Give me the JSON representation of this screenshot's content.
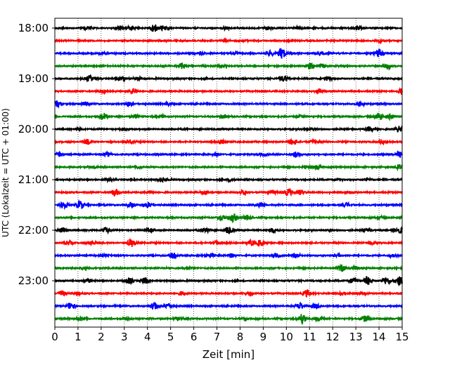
{
  "chart_data": {
    "type": "line",
    "xlabel": "Zeit  [min]",
    "ylabel": "UTC (Lokalzeit = UTC + 01:00)",
    "xlim": [
      0,
      15
    ],
    "x_ticks": [
      "0",
      "1",
      "2",
      "3",
      "4",
      "5",
      "6",
      "7",
      "8",
      "9",
      "10",
      "11",
      "12",
      "13",
      "14",
      "15"
    ],
    "y_tick_labels": [
      "18:00",
      "19:00",
      "20:00",
      "21:00",
      "22:00",
      "23:00"
    ],
    "y_tick_rows": [
      0,
      4,
      8,
      12,
      16,
      20
    ],
    "grid": "vertical dotted at each minute",
    "trace_interval_min": 15,
    "trace_colors": [
      "#000000",
      "#ff0000",
      "#0000ff",
      "#008000"
    ],
    "traces": [
      {
        "time": "18:00",
        "events": [
          [
            1.4,
            0.25
          ],
          [
            2.8,
            0.3
          ],
          [
            3.3,
            0.25
          ],
          [
            4.3,
            0.55
          ],
          [
            4.7,
            0.35
          ],
          [
            7.4,
            0.2
          ],
          [
            9.2,
            0.25
          ],
          [
            10.5,
            0.2
          ],
          [
            13.1,
            0.35
          ]
        ]
      },
      {
        "time": "18:15",
        "events": [
          [
            7.3,
            0.2
          ],
          [
            8.1,
            0.15
          ],
          [
            10.2,
            0.15
          ],
          [
            14.1,
            0.2
          ]
        ]
      },
      {
        "time": "18:30",
        "events": [
          [
            2.1,
            0.15
          ],
          [
            6.3,
            0.2
          ],
          [
            7.8,
            0.2
          ],
          [
            9.3,
            0.35
          ],
          [
            9.8,
            0.8
          ],
          [
            11.5,
            0.25
          ],
          [
            14.0,
            0.75
          ]
        ]
      },
      {
        "time": "18:45",
        "events": [
          [
            5.5,
            0.45
          ],
          [
            7.2,
            0.2
          ],
          [
            11.0,
            0.45
          ],
          [
            11.5,
            0.3
          ],
          [
            14.4,
            0.4
          ]
        ]
      },
      {
        "time": "19:00",
        "events": [
          [
            1.5,
            0.45
          ],
          [
            2.9,
            0.35
          ],
          [
            3.6,
            0.25
          ],
          [
            9.9,
            0.45
          ],
          [
            11.8,
            0.3
          ]
        ]
      },
      {
        "time": "19:15",
        "events": [
          [
            2.1,
            0.2
          ],
          [
            3.4,
            0.4
          ],
          [
            11.4,
            0.35
          ],
          [
            15.0,
            0.5
          ]
        ]
      },
      {
        "time": "19:30",
        "events": [
          [
            0.1,
            0.45
          ],
          [
            1.3,
            0.25
          ],
          [
            3.2,
            0.35
          ],
          [
            4.9,
            0.2
          ],
          [
            13.2,
            0.35
          ]
        ]
      },
      {
        "time": "19:45",
        "events": [
          [
            2.1,
            0.55
          ],
          [
            3.5,
            0.25
          ],
          [
            4.6,
            0.2
          ],
          [
            7.3,
            0.25
          ],
          [
            10.6,
            0.2
          ],
          [
            14.0,
            0.6
          ],
          [
            14.5,
            0.4
          ]
        ]
      },
      {
        "time": "20:00",
        "events": [
          [
            1.0,
            0.25
          ],
          [
            3.0,
            0.2
          ],
          [
            10.9,
            0.2
          ],
          [
            13.6,
            0.3
          ],
          [
            14.9,
            0.45
          ]
        ]
      },
      {
        "time": "20:15",
        "events": [
          [
            1.4,
            0.4
          ],
          [
            3.3,
            0.2
          ],
          [
            7.2,
            0.4
          ],
          [
            10.3,
            0.5
          ],
          [
            11.2,
            0.25
          ],
          [
            14.1,
            0.3
          ]
        ]
      },
      {
        "time": "20:30",
        "events": [
          [
            0.2,
            0.3
          ],
          [
            2.3,
            0.3
          ],
          [
            7.0,
            0.2
          ],
          [
            9.0,
            0.2
          ],
          [
            10.4,
            0.35
          ],
          [
            14.9,
            0.45
          ]
        ]
      },
      {
        "time": "20:45",
        "events": [
          [
            1.6,
            0.15
          ],
          [
            3.6,
            0.2
          ],
          [
            10.9,
            0.2
          ],
          [
            11.3,
            0.25
          ],
          [
            14.9,
            0.5
          ]
        ]
      },
      {
        "time": "21:00",
        "events": [
          [
            2.3,
            0.15
          ],
          [
            4.7,
            0.2
          ],
          [
            7.6,
            0.2
          ],
          [
            12.2,
            0.15
          ],
          [
            13.5,
            0.2
          ]
        ]
      },
      {
        "time": "21:15",
        "events": [
          [
            2.6,
            0.55
          ],
          [
            4.1,
            0.2
          ],
          [
            6.5,
            0.35
          ],
          [
            8.2,
            0.35
          ],
          [
            9.4,
            0.3
          ],
          [
            10.1,
            0.5
          ],
          [
            10.6,
            0.35
          ],
          [
            12.8,
            0.2
          ]
        ]
      },
      {
        "time": "21:30",
        "events": [
          [
            0.4,
            0.55
          ],
          [
            1.1,
            0.65
          ],
          [
            3.3,
            0.45
          ],
          [
            4.0,
            0.4
          ],
          [
            8.9,
            0.3
          ],
          [
            12.6,
            0.3
          ]
        ]
      },
      {
        "time": "21:45",
        "events": [
          [
            7.2,
            0.35
          ],
          [
            7.7,
            0.65
          ],
          [
            8.3,
            0.35
          ],
          [
            14.0,
            0.2
          ]
        ]
      },
      {
        "time": "22:00",
        "events": [
          [
            0.3,
            0.35
          ],
          [
            2.2,
            0.45
          ],
          [
            4.1,
            0.3
          ],
          [
            6.5,
            0.45
          ],
          [
            7.5,
            0.55
          ],
          [
            9.4,
            0.35
          ],
          [
            13.5,
            0.2
          ],
          [
            14.9,
            0.45
          ]
        ]
      },
      {
        "time": "22:15",
        "events": [
          [
            0.6,
            0.3
          ],
          [
            1.6,
            0.3
          ],
          [
            3.3,
            0.6
          ],
          [
            7.0,
            0.3
          ],
          [
            8.5,
            0.4
          ],
          [
            8.9,
            0.5
          ],
          [
            13.7,
            0.2
          ]
        ]
      },
      {
        "time": "22:30",
        "events": [
          [
            2.2,
            0.2
          ],
          [
            5.1,
            0.4
          ],
          [
            6.7,
            0.3
          ],
          [
            7.6,
            0.3
          ],
          [
            9.6,
            0.25
          ],
          [
            10.4,
            0.4
          ],
          [
            12.2,
            0.25
          ],
          [
            14.6,
            0.25
          ]
        ]
      },
      {
        "time": "22:45",
        "events": [
          [
            1.3,
            0.15
          ],
          [
            5.8,
            0.2
          ],
          [
            12.4,
            0.5
          ],
          [
            13.0,
            0.25
          ]
        ]
      },
      {
        "time": "23:00",
        "events": [
          [
            1.4,
            0.3
          ],
          [
            3.2,
            0.45
          ],
          [
            3.9,
            0.45
          ],
          [
            12.9,
            0.45
          ],
          [
            13.5,
            0.6
          ],
          [
            14.3,
            0.55
          ],
          [
            14.9,
            0.65
          ]
        ]
      },
      {
        "time": "23:15",
        "events": [
          [
            0.3,
            0.4
          ],
          [
            1.0,
            0.25
          ],
          [
            5.5,
            0.3
          ],
          [
            8.4,
            0.2
          ],
          [
            10.9,
            0.55
          ],
          [
            12.4,
            0.3
          ],
          [
            13.3,
            0.2
          ]
        ]
      },
      {
        "time": "23:30",
        "events": [
          [
            0.7,
            0.55
          ],
          [
            4.3,
            0.6
          ],
          [
            4.9,
            0.4
          ],
          [
            10.6,
            0.5
          ],
          [
            11.3,
            0.35
          ]
        ]
      },
      {
        "time": "23:45",
        "events": [
          [
            1.1,
            0.25
          ],
          [
            3.1,
            0.2
          ],
          [
            5.3,
            0.25
          ],
          [
            8.2,
            0.15
          ],
          [
            10.7,
            0.85
          ],
          [
            11.4,
            0.35
          ],
          [
            13.4,
            0.45
          ]
        ]
      }
    ]
  }
}
